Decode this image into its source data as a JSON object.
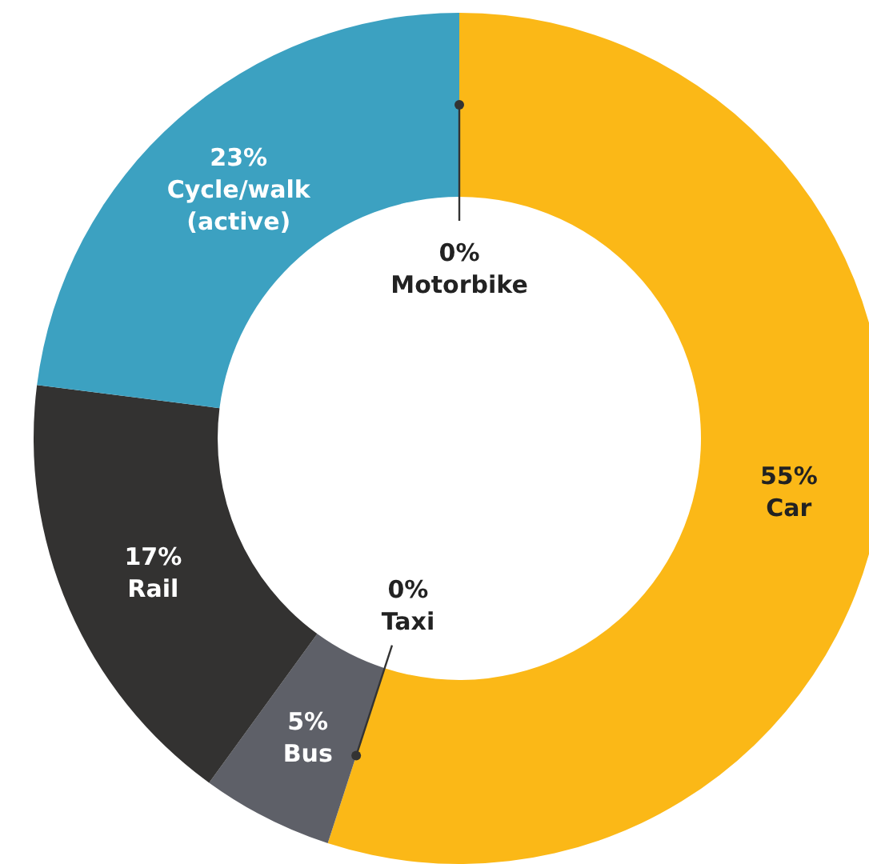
{
  "chart_data": {
    "type": "donut",
    "categories": [
      "Car",
      "Taxi",
      "Bus",
      "Rail",
      "Cycle/walk (active)",
      "Motorbike"
    ],
    "values": [
      55,
      0,
      5,
      17,
      23,
      0
    ],
    "colors": [
      "#fbb817",
      "#333333",
      "#5e6068",
      "#333231",
      "#3ca1c1",
      "#333333"
    ],
    "value_labels": [
      "55%",
      "0%",
      "5%",
      "17%",
      "23%",
      "0%"
    ]
  }
}
